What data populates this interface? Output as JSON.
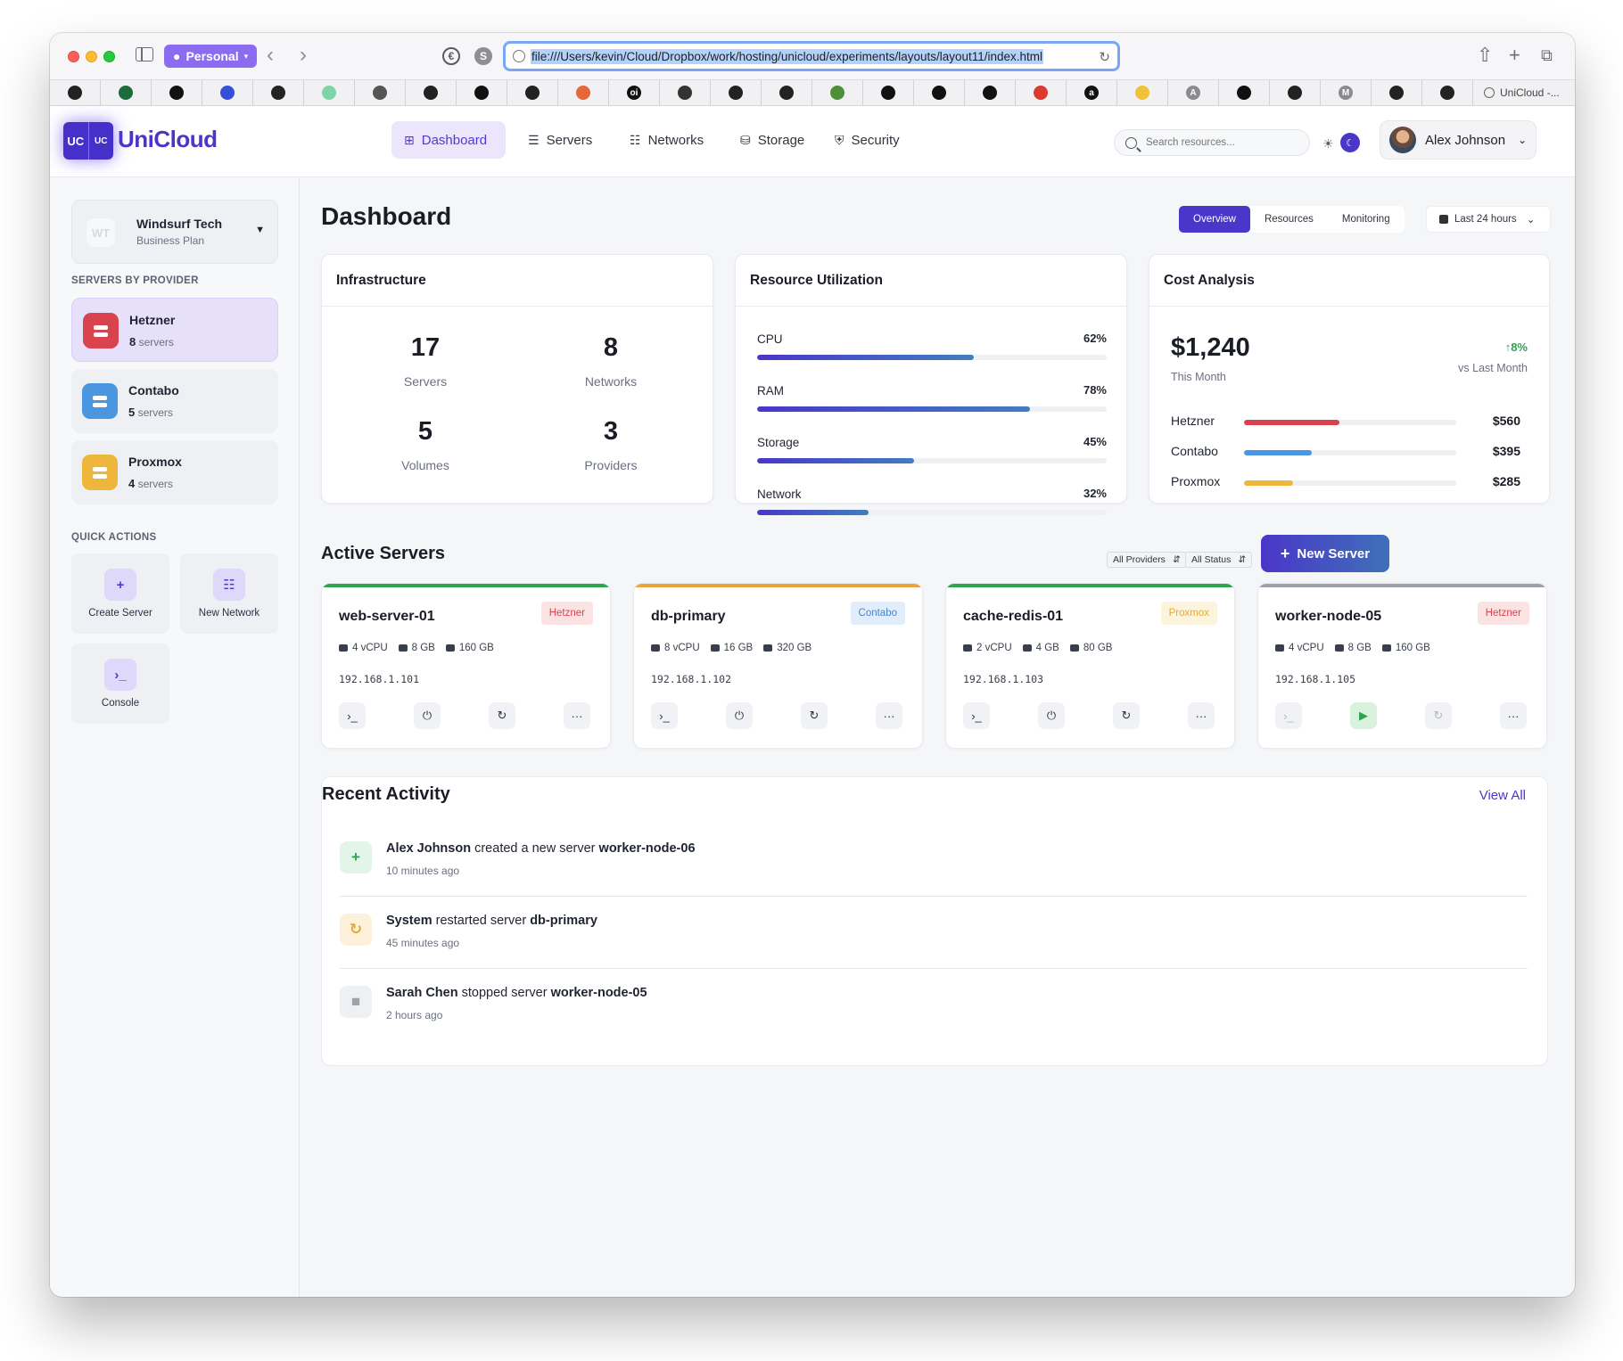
{
  "browser": {
    "profile_label": "Personal",
    "url": "file:///Users/kevin/Cloud/Dropbox/work/hosting/unicloud/experiments/layouts/layout11/index.html",
    "ext1": "€",
    "ext2": "S",
    "bookmark_count": 28,
    "bookmarks": [
      "github",
      "activity",
      "notion",
      "jira",
      "github",
      "leaf",
      "tools",
      "github",
      "box",
      "github",
      "figma",
      "oi",
      "linux",
      "github",
      "github",
      "planet",
      "star",
      "star",
      "star",
      "bars",
      "amazon",
      "emoji",
      "A",
      "bear",
      "github",
      "M",
      "github",
      "github"
    ],
    "bookmark_labels": [
      "",
      "",
      "",
      "",
      "",
      "",
      "",
      "",
      "",
      "",
      "",
      "oi",
      "",
      "",
      "",
      "",
      "",
      "",
      "",
      "",
      "a",
      "",
      "A",
      "",
      "",
      "M",
      "",
      ""
    ],
    "active_tab_title": "UniCloud -..."
  },
  "app": {
    "logo_mark_1": "UC",
    "logo_mark_2": "UC",
    "logo_text": "UniCloud",
    "nav": [
      {
        "label": "Dashboard",
        "icon": "grid-icon",
        "glyph": "⊞"
      },
      {
        "label": "Servers",
        "icon": "servers-icon",
        "glyph": "☰"
      },
      {
        "label": "Networks",
        "icon": "network-icon",
        "glyph": "☷"
      },
      {
        "label": "Storage",
        "icon": "storage-icon",
        "glyph": "⛁"
      },
      {
        "label": "Security",
        "icon": "shield-icon",
        "glyph": "⛨"
      }
    ],
    "search_placeholder": "Search resources...",
    "theme_sun": "☀",
    "theme_moon": "☾",
    "user_name": "Alex Johnson"
  },
  "sidebar": {
    "org_initials": "WT",
    "org_name": "Windsurf Tech",
    "org_plan": "Business Plan",
    "providers_heading": "SERVERS BY PROVIDER",
    "providers": [
      {
        "name": "Hetzner",
        "count": "8",
        "unit": "servers",
        "color": "#d9434e"
      },
      {
        "name": "Contabo",
        "count": "5",
        "unit": "servers",
        "color": "#4a96e0"
      },
      {
        "name": "Proxmox",
        "count": "4",
        "unit": "servers",
        "color": "#eeb73b"
      }
    ],
    "quick_heading": "QUICK ACTIONS",
    "quick_actions": [
      {
        "label": "Create Server",
        "glyph": "+"
      },
      {
        "label": "New Network",
        "glyph": "☷"
      },
      {
        "label": "Console",
        "glyph": "›_"
      }
    ]
  },
  "dashboard": {
    "title": "Dashboard",
    "tabs": [
      "Overview",
      "Resources",
      "Monitoring"
    ],
    "range": "Last 24 hours",
    "infra": {
      "title": "Infrastructure",
      "stats": [
        {
          "value": "17",
          "label": "Servers"
        },
        {
          "value": "8",
          "label": "Networks"
        },
        {
          "value": "5",
          "label": "Volumes"
        },
        {
          "value": "3",
          "label": "Providers"
        }
      ]
    },
    "utilization": {
      "title": "Resource Utilization",
      "rows": [
        {
          "name": "CPU",
          "pct": "62%",
          "value": 0.62
        },
        {
          "name": "RAM",
          "pct": "78%",
          "value": 0.78
        },
        {
          "name": "Storage",
          "pct": "45%",
          "value": 0.45
        },
        {
          "name": "Network",
          "pct": "32%",
          "value": 0.32
        }
      ]
    },
    "cost": {
      "title": "Cost Analysis",
      "total": "$1,240",
      "period": "This Month",
      "trend": "↑8%",
      "trend_caption": "vs Last Month",
      "rows": [
        {
          "name": "Hetzner",
          "amount": "$560",
          "value": 0.45,
          "color": "#d9434e"
        },
        {
          "name": "Contabo",
          "amount": "$395",
          "value": 0.32,
          "color": "#4a96e0"
        },
        {
          "name": "Proxmox",
          "amount": "$285",
          "value": 0.23,
          "color": "#eeb73b"
        }
      ]
    },
    "active_servers": {
      "title": "Active Servers",
      "filter_provider": "All Providers",
      "filter_status": "All Status",
      "new_label": "New Server",
      "servers": [
        {
          "name": "web-server-01",
          "provider": "Hetzner",
          "tag_bg": "#fbe3e4",
          "tag_fg": "#d9434e",
          "strip": "#2da44e",
          "cpu": "4 vCPU",
          "ram": "8 GB",
          "disk": "160 GB",
          "ip": "192.168.1.101",
          "running": true
        },
        {
          "name": "db-primary",
          "provider": "Contabo",
          "tag_bg": "#e1edfa",
          "tag_fg": "#4a86c8",
          "strip": "#eba33d",
          "cpu": "8 vCPU",
          "ram": "16 GB",
          "disk": "320 GB",
          "ip": "192.168.1.102",
          "running": true
        },
        {
          "name": "cache-redis-01",
          "provider": "Proxmox",
          "tag_bg": "#fdf4dd",
          "tag_fg": "#e8a92c",
          "strip": "#2da44e",
          "cpu": "2 vCPU",
          "ram": "4 GB",
          "disk": "80 GB",
          "ip": "192.168.1.103",
          "running": true
        },
        {
          "name": "worker-node-05",
          "provider": "Hetzner",
          "tag_bg": "#fbe3e4",
          "tag_fg": "#d9434e",
          "strip": "#9ea2ab",
          "cpu": "4 vCPU",
          "ram": "8 GB",
          "disk": "160 GB",
          "ip": "192.168.1.105",
          "running": false
        }
      ]
    },
    "activity": {
      "title": "Recent Activity",
      "view_all": "View All",
      "items": [
        {
          "actor": "Alex Johnson",
          "action": " created a new server ",
          "target": "worker-node-06",
          "time": "10 minutes ago",
          "icon": "plus-icon",
          "glyph": "+",
          "bg": "#e3f5e8",
          "fg": "#2da44e"
        },
        {
          "actor": "System",
          "action": " restarted server ",
          "target": "db-primary",
          "time": "45 minutes ago",
          "icon": "restart-icon",
          "glyph": "↻",
          "bg": "#fdf1db",
          "fg": "#e8a92c"
        },
        {
          "actor": "Sarah Chen",
          "action": " stopped server ",
          "target": "worker-node-05",
          "time": "2 hours ago",
          "icon": "stop-icon",
          "glyph": "■",
          "bg": "#eef0f4",
          "fg": "#9ea2ab"
        }
      ]
    }
  }
}
